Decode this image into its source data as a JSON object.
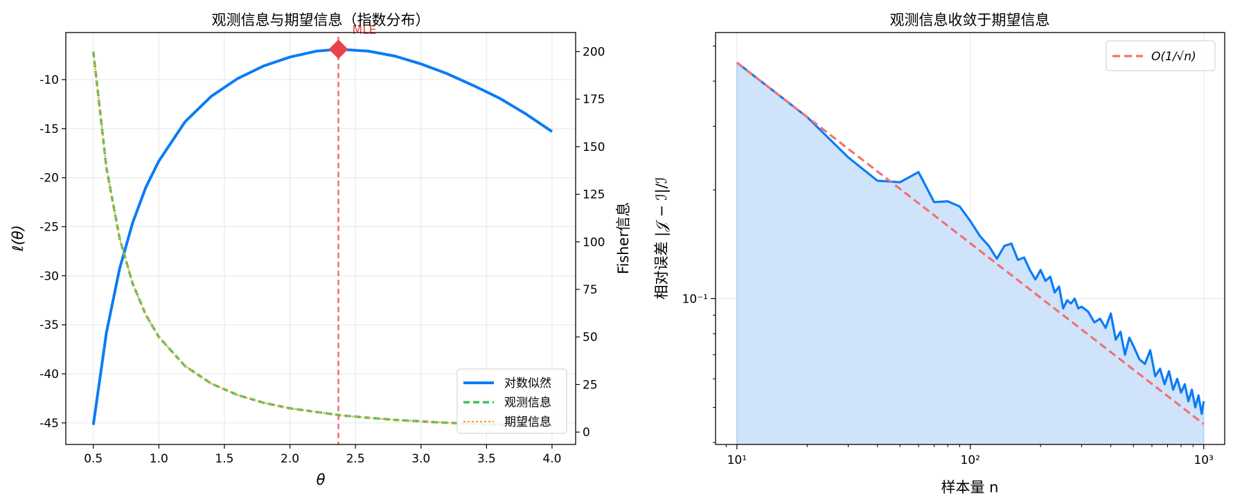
{
  "colors": {
    "loglik": "#0a7cf5",
    "observed": "#3cc35c",
    "expected": "#f5a23a",
    "mle": "#e8434b",
    "mle_line": "#f07070",
    "ref_line": "#f07272",
    "fill": "#cfe3fb",
    "error": "#0a7cf5",
    "grid": "#e6e6e6"
  },
  "chart_data": [
    {
      "type": "line",
      "title": "观测信息与期望信息（指数分布）",
      "xlabel": "θ",
      "ylabel": "ℓ(θ)",
      "y2label": "Fisher信息",
      "xlim": [
        0.29,
        4.18
      ],
      "ylim": [
        -47.2,
        -5.2
      ],
      "y2lim": [
        -6.5,
        210
      ],
      "xticks": [
        "0.5",
        "1.0",
        "1.5",
        "2.0",
        "2.5",
        "3.0",
        "3.5",
        "4.0"
      ],
      "xtick_values": [
        0.5,
        1.0,
        1.5,
        2.0,
        2.5,
        3.0,
        3.5,
        4.0
      ],
      "yticks": [
        "-10",
        "-15",
        "-20",
        "-25",
        "-30",
        "-35",
        "-40",
        "-45"
      ],
      "ytick_values": [
        -10,
        -15,
        -20,
        -25,
        -30,
        -35,
        -40,
        -45
      ],
      "y2ticks": [
        "0",
        "25",
        "50",
        "75",
        "100",
        "125",
        "150",
        "175",
        "200"
      ],
      "y2tick_values": [
        0,
        25,
        50,
        75,
        100,
        125,
        150,
        175,
        200
      ],
      "grid": true,
      "legend_position": "lower-right",
      "series": [
        {
          "name": "对数似然",
          "axis": "left",
          "style": "solid",
          "x": [
            0.5,
            0.6,
            0.7,
            0.8,
            0.9,
            1.0,
            1.2,
            1.4,
            1.6,
            1.8,
            2.0,
            2.2,
            2.37,
            2.6,
            2.8,
            3.0,
            3.2,
            3.4,
            3.6,
            3.8,
            4.0
          ],
          "y": [
            -45.2,
            -35.8,
            -29.3,
            -24.6,
            -21.0,
            -18.3,
            -14.3,
            -11.7,
            -9.9,
            -8.6,
            -7.7,
            -7.1,
            -6.9,
            -7.1,
            -7.6,
            -8.4,
            -9.4,
            -10.6,
            -11.9,
            -13.5,
            -15.3
          ]
        },
        {
          "name": "观测信息",
          "axis": "right",
          "style": "dashed",
          "x": [
            0.5,
            0.6,
            0.7,
            0.8,
            0.9,
            1.0,
            1.2,
            1.4,
            1.6,
            1.8,
            2.0,
            2.4,
            2.8,
            3.2,
            3.6,
            4.0
          ],
          "y": [
            200,
            138.9,
            102.0,
            78.1,
            61.7,
            50.0,
            34.7,
            25.5,
            19.5,
            15.4,
            12.5,
            8.7,
            6.4,
            4.9,
            3.9,
            3.1
          ]
        },
        {
          "name": "期望信息",
          "axis": "right",
          "style": "dotted",
          "x": [
            0.5,
            0.6,
            0.7,
            0.8,
            0.9,
            1.0,
            1.2,
            1.4,
            1.6,
            1.8,
            2.0,
            2.4,
            2.8,
            3.2,
            3.6,
            4.0
          ],
          "y": [
            200,
            138.9,
            102.0,
            78.1,
            61.7,
            50.0,
            34.7,
            25.5,
            19.5,
            15.4,
            12.5,
            8.7,
            6.4,
            4.9,
            3.9,
            3.1
          ]
        }
      ],
      "annotations": [
        {
          "text": "MLE",
          "x": 2.37,
          "y": -6.9
        }
      ]
    },
    {
      "type": "line",
      "title": "观测信息收敛于期望信息",
      "xlabel": "样本量 n",
      "ylabel": "相对误差 |𝒥 − ℐ|/ℐ",
      "xscale": "log",
      "yscale": "log",
      "xlim": [
        8.1,
        1230
      ],
      "ylim": [
        0.0395,
        0.545
      ],
      "xticks": [
        "10¹",
        "10²",
        "10³"
      ],
      "xtick_values": [
        10,
        100,
        1000
      ],
      "yticks": [
        "10⁻¹"
      ],
      "ytick_values": [
        0.1
      ],
      "grid": true,
      "legend_position": "upper-right",
      "series": [
        {
          "name": "",
          "style": "solid-filled",
          "x": [
            10,
            20,
            30,
            40,
            50,
            60,
            70,
            80,
            90,
            100,
            110,
            120,
            130,
            140,
            150,
            160,
            170,
            180,
            190,
            200,
            210,
            220,
            230,
            240,
            250,
            260,
            270,
            280,
            290,
            300,
            320,
            340,
            360,
            380,
            400,
            420,
            440,
            460,
            480,
            500,
            530,
            560,
            590,
            620,
            650,
            680,
            710,
            740,
            770,
            800,
            830,
            860,
            890,
            920,
            950,
            980,
            1000
          ],
          "y": [
            0.45,
            0.318,
            0.246,
            0.212,
            0.21,
            0.224,
            0.185,
            0.186,
            0.18,
            0.164,
            0.149,
            0.14,
            0.129,
            0.14,
            0.142,
            0.128,
            0.13,
            0.12,
            0.113,
            0.12,
            0.112,
            0.115,
            0.104,
            0.108,
            0.094,
            0.099,
            0.097,
            0.1,
            0.094,
            0.095,
            0.092,
            0.086,
            0.088,
            0.083,
            0.091,
            0.077,
            0.081,
            0.07,
            0.078,
            0.074,
            0.068,
            0.066,
            0.072,
            0.061,
            0.064,
            0.058,
            0.063,
            0.056,
            0.06,
            0.055,
            0.058,
            0.052,
            0.056,
            0.05,
            0.054,
            0.048,
            0.052
          ]
        },
        {
          "name": "O(1/√n)",
          "style": "dashed",
          "x": [
            10,
            1000
          ],
          "y": [
            0.45,
            0.045
          ]
        }
      ]
    }
  ]
}
